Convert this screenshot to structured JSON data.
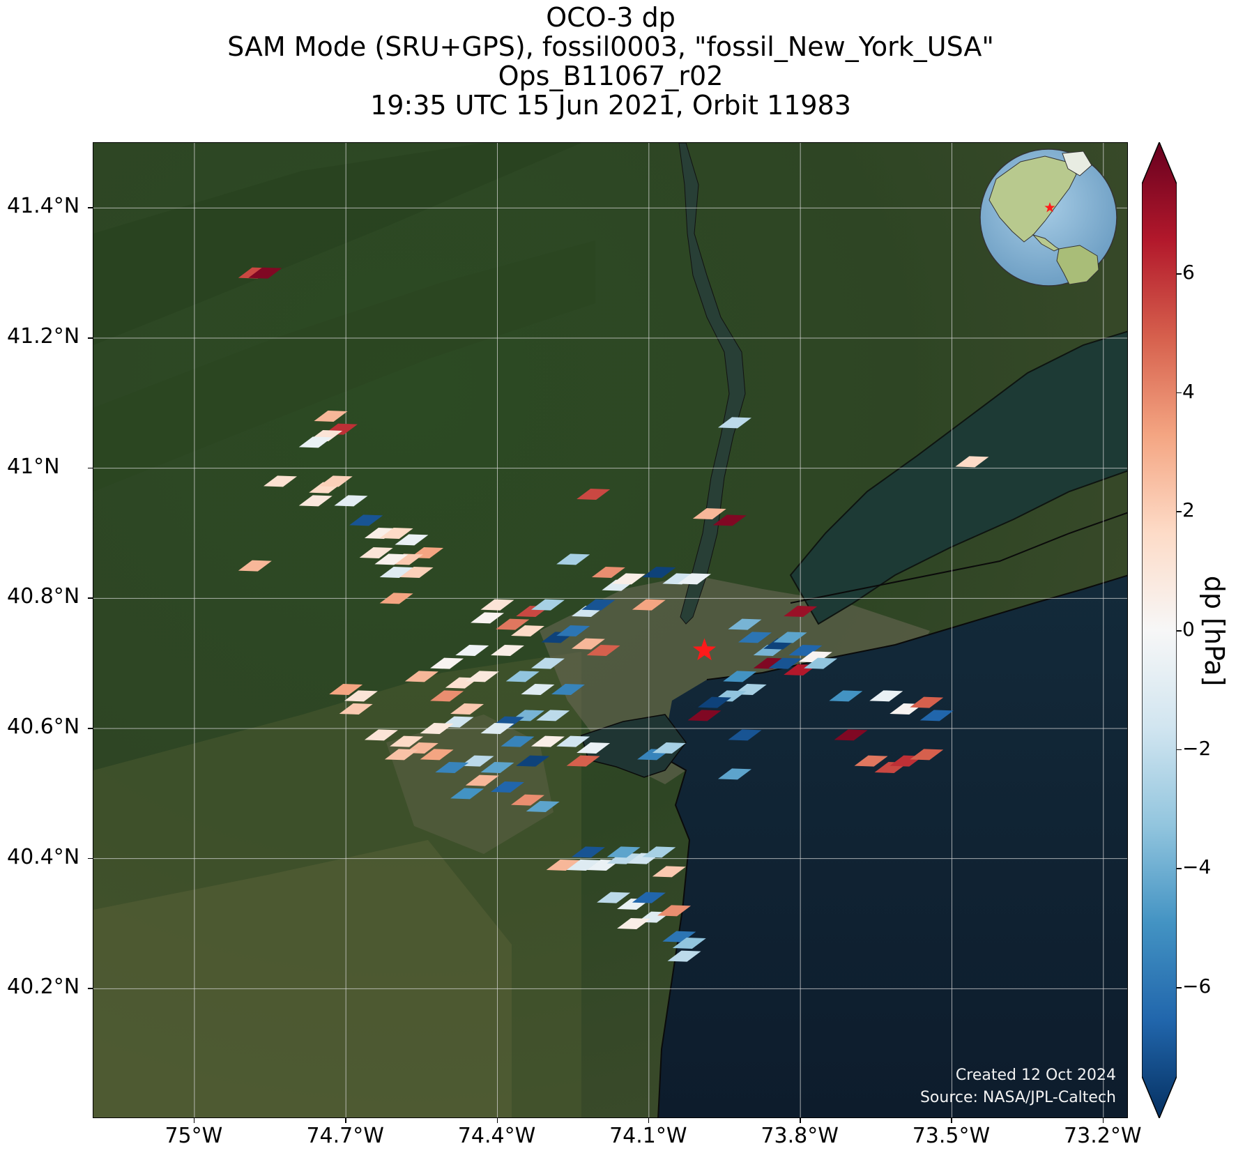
{
  "title": {
    "line1": "OCO-3 dp",
    "line2": "SAM Mode (SRU+GPS), fossil0003, \"fossil_New_York_USA\"",
    "line3": "Ops_B11067_r02",
    "line4": "19:35 UTC 15 Jun 2021, Orbit 11983"
  },
  "credits": {
    "created": "Created 12 Oct 2024",
    "source": "Source: NASA/JPL-Caltech"
  },
  "axes": {
    "lat_ticks": [
      {
        "value": 41.4,
        "label": "41.4°N"
      },
      {
        "value": 41.2,
        "label": "41.2°N"
      },
      {
        "value": 41.0,
        "label": "41°N"
      },
      {
        "value": 40.8,
        "label": "40.8°N"
      },
      {
        "value": 40.6,
        "label": "40.6°N"
      },
      {
        "value": 40.4,
        "label": "40.4°N"
      },
      {
        "value": 40.2,
        "label": "40.2°N"
      }
    ],
    "lon_ticks": [
      {
        "value": -75.0,
        "label": "75°W"
      },
      {
        "value": -74.7,
        "label": "74.7°W"
      },
      {
        "value": -74.4,
        "label": "74.4°W"
      },
      {
        "value": -74.1,
        "label": "74.1°W"
      },
      {
        "value": -73.8,
        "label": "73.8°W"
      },
      {
        "value": -73.5,
        "label": "73.5°W"
      },
      {
        "value": -73.2,
        "label": "73.2°W"
      }
    ],
    "lat_range": [
      40.0,
      41.5
    ],
    "lon_range": [
      -75.2,
      -73.15
    ],
    "grid": true
  },
  "colorbar": {
    "label": "dp [hPa]",
    "ticks": [
      {
        "value": 6,
        "label": "6"
      },
      {
        "value": 4,
        "label": "4"
      },
      {
        "value": 2,
        "label": "2"
      },
      {
        "value": 0,
        "label": "0"
      },
      {
        "value": -2,
        "label": "−2"
      },
      {
        "value": -4,
        "label": "−4"
      },
      {
        "value": -6,
        "label": "−6"
      }
    ],
    "range": [
      -7.5,
      7.5
    ],
    "extend": "both",
    "colormap": "RdBu_r"
  },
  "target": {
    "lon": -73.99,
    "lat": 40.72,
    "marker": "red-star"
  },
  "inset_globe": {
    "location": "top-right",
    "marker": "red-star"
  },
  "soundings": [
    {
      "lon": -74.88,
      "lat": 41.3,
      "dp": 5.0
    },
    {
      "lon": -74.86,
      "lat": 41.3,
      "dp": 7.0
    },
    {
      "lon": -74.73,
      "lat": 41.08,
      "dp": 2.5
    },
    {
      "lon": -74.71,
      "lat": 41.06,
      "dp": 5.5
    },
    {
      "lon": -74.74,
      "lat": 41.05,
      "dp": 1.0
    },
    {
      "lon": -74.76,
      "lat": 41.04,
      "dp": -0.5
    },
    {
      "lon": -74.83,
      "lat": 40.98,
      "dp": 1.2
    },
    {
      "lon": -74.74,
      "lat": 40.97,
      "dp": 1.5
    },
    {
      "lon": -74.72,
      "lat": 40.98,
      "dp": 1.8
    },
    {
      "lon": -74.69,
      "lat": 40.95,
      "dp": -0.8
    },
    {
      "lon": -74.76,
      "lat": 40.95,
      "dp": 0.8
    },
    {
      "lon": -74.88,
      "lat": 40.85,
      "dp": 2.5
    },
    {
      "lon": -74.66,
      "lat": 40.92,
      "dp": -6.5
    },
    {
      "lon": -74.63,
      "lat": 40.9,
      "dp": 0.5
    },
    {
      "lon": -74.6,
      "lat": 40.9,
      "dp": 1.5
    },
    {
      "lon": -74.57,
      "lat": 40.89,
      "dp": -0.5
    },
    {
      "lon": -74.54,
      "lat": 40.87,
      "dp": 3.0
    },
    {
      "lon": -74.58,
      "lat": 40.86,
      "dp": 2.0
    },
    {
      "lon": -74.61,
      "lat": 40.86,
      "dp": 0.3
    },
    {
      "lon": -74.64,
      "lat": 40.87,
      "dp": 1.0
    },
    {
      "lon": -74.6,
      "lat": 40.84,
      "dp": -1.0
    },
    {
      "lon": -74.56,
      "lat": 40.84,
      "dp": 1.8
    },
    {
      "lon": -74.6,
      "lat": 40.8,
      "dp": 3.0
    },
    {
      "lon": -74.4,
      "lat": 40.79,
      "dp": 1.0
    },
    {
      "lon": -74.42,
      "lat": 40.77,
      "dp": 0.2
    },
    {
      "lon": -74.37,
      "lat": 40.76,
      "dp": 4.0
    },
    {
      "lon": -74.33,
      "lat": 40.78,
      "dp": 5.0
    },
    {
      "lon": -74.3,
      "lat": 40.79,
      "dp": -2.5
    },
    {
      "lon": -74.34,
      "lat": 40.75,
      "dp": 1.5
    },
    {
      "lon": -74.38,
      "lat": 40.72,
      "dp": 0.5
    },
    {
      "lon": -74.45,
      "lat": 40.72,
      "dp": -0.3
    },
    {
      "lon": -74.5,
      "lat": 40.7,
      "dp": 0.2
    },
    {
      "lon": -74.55,
      "lat": 40.68,
      "dp": 2.5
    },
    {
      "lon": -74.47,
      "lat": 40.67,
      "dp": 1.2
    },
    {
      "lon": -74.43,
      "lat": 40.68,
      "dp": 0.8
    },
    {
      "lon": -74.5,
      "lat": 40.65,
      "dp": 3.5
    },
    {
      "lon": -74.46,
      "lat": 40.63,
      "dp": 2.0
    },
    {
      "lon": -74.48,
      "lat": 40.61,
      "dp": -1.5
    },
    {
      "lon": -74.28,
      "lat": 40.74,
      "dp": -7.0
    },
    {
      "lon": -74.25,
      "lat": 40.75,
      "dp": -5.5
    },
    {
      "lon": -74.22,
      "lat": 40.73,
      "dp": 2.5
    },
    {
      "lon": -74.19,
      "lat": 40.72,
      "dp": 4.5
    },
    {
      "lon": -74.3,
      "lat": 40.7,
      "dp": -2.0
    },
    {
      "lon": -74.35,
      "lat": 40.68,
      "dp": -3.0
    },
    {
      "lon": -74.32,
      "lat": 40.66,
      "dp": -1.0
    },
    {
      "lon": -74.26,
      "lat": 40.66,
      "dp": -5.0
    },
    {
      "lon": -74.29,
      "lat": 40.62,
      "dp": -2.0
    },
    {
      "lon": -74.34,
      "lat": 40.62,
      "dp": -3.5
    },
    {
      "lon": -74.38,
      "lat": 40.61,
      "dp": -6.5
    },
    {
      "lon": -74.4,
      "lat": 40.6,
      "dp": -1.0
    },
    {
      "lon": -74.36,
      "lat": 40.58,
      "dp": -5.0
    },
    {
      "lon": -74.3,
      "lat": 40.58,
      "dp": 0.5
    },
    {
      "lon": -74.25,
      "lat": 40.58,
      "dp": -1.5
    },
    {
      "lon": -74.21,
      "lat": 40.57,
      "dp": -0.5
    },
    {
      "lon": -74.23,
      "lat": 40.55,
      "dp": 4.5
    },
    {
      "lon": -74.33,
      "lat": 40.55,
      "dp": -7.0
    },
    {
      "lon": -74.4,
      "lat": 40.54,
      "dp": -4.0
    },
    {
      "lon": -74.44,
      "lat": 40.55,
      "dp": -2.0
    },
    {
      "lon": -74.49,
      "lat": 40.54,
      "dp": -5.0
    },
    {
      "lon": -74.43,
      "lat": 40.52,
      "dp": 2.5
    },
    {
      "lon": -74.38,
      "lat": 40.51,
      "dp": -6.0
    },
    {
      "lon": -74.34,
      "lat": 40.49,
      "dp": 3.5
    },
    {
      "lon": -74.31,
      "lat": 40.48,
      "dp": -4.0
    },
    {
      "lon": -74.46,
      "lat": 40.5,
      "dp": -4.5
    },
    {
      "lon": -74.7,
      "lat": 40.66,
      "dp": 3.0
    },
    {
      "lon": -74.67,
      "lat": 40.65,
      "dp": 1.0
    },
    {
      "lon": -74.68,
      "lat": 40.63,
      "dp": 2.0
    },
    {
      "lon": -74.63,
      "lat": 40.59,
      "dp": 1.0
    },
    {
      "lon": -74.58,
      "lat": 40.58,
      "dp": 1.5
    },
    {
      "lon": -74.55,
      "lat": 40.57,
      "dp": 2.5
    },
    {
      "lon": -74.52,
      "lat": 40.56,
      "dp": 3.0
    },
    {
      "lon": -74.59,
      "lat": 40.56,
      "dp": 2.2
    },
    {
      "lon": -74.52,
      "lat": 40.6,
      "dp": 0.8
    },
    {
      "lon": -74.21,
      "lat": 40.96,
      "dp": 5.0
    },
    {
      "lon": -74.25,
      "lat": 40.86,
      "dp": -2.5
    },
    {
      "lon": -74.18,
      "lat": 40.84,
      "dp": 3.5
    },
    {
      "lon": -74.16,
      "lat": 40.82,
      "dp": -1.0
    },
    {
      "lon": -74.14,
      "lat": 40.83,
      "dp": 0.5
    },
    {
      "lon": -74.22,
      "lat": 40.78,
      "dp": -1.5
    },
    {
      "lon": -74.2,
      "lat": 40.79,
      "dp": -6.5
    },
    {
      "lon": -74.1,
      "lat": 40.79,
      "dp": 3.0
    },
    {
      "lon": -74.08,
      "lat": 40.84,
      "dp": -7.0
    },
    {
      "lon": -74.04,
      "lat": 40.83,
      "dp": -1.5
    },
    {
      "lon": -74.01,
      "lat": 40.83,
      "dp": -0.5
    },
    {
      "lon": -73.98,
      "lat": 40.93,
      "dp": 2.5
    },
    {
      "lon": -73.94,
      "lat": 40.92,
      "dp": 7.0
    },
    {
      "lon": -73.93,
      "lat": 41.07,
      "dp": -2.0
    },
    {
      "lon": -74.09,
      "lat": 40.56,
      "dp": -5.0
    },
    {
      "lon": -74.06,
      "lat": 40.57,
      "dp": -2.5
    },
    {
      "lon": -73.91,
      "lat": 40.76,
      "dp": -3.5
    },
    {
      "lon": -73.89,
      "lat": 40.74,
      "dp": -5.5
    },
    {
      "lon": -73.86,
      "lat": 40.72,
      "dp": -3.5
    },
    {
      "lon": -73.84,
      "lat": 40.73,
      "dp": -7.0
    },
    {
      "lon": -73.82,
      "lat": 40.74,
      "dp": -4.0
    },
    {
      "lon": -73.86,
      "lat": 40.7,
      "dp": 7.0
    },
    {
      "lon": -73.83,
      "lat": 40.7,
      "dp": -6.5
    },
    {
      "lon": -73.8,
      "lat": 40.69,
      "dp": 6.0
    },
    {
      "lon": -73.79,
      "lat": 40.72,
      "dp": -6.0
    },
    {
      "lon": -73.77,
      "lat": 40.71,
      "dp": 0.2
    },
    {
      "lon": -73.76,
      "lat": 40.7,
      "dp": -3.0
    },
    {
      "lon": -73.8,
      "lat": 40.78,
      "dp": 6.5
    },
    {
      "lon": -73.92,
      "lat": 40.68,
      "dp": -4.5
    },
    {
      "lon": -73.9,
      "lat": 40.66,
      "dp": -2.5
    },
    {
      "lon": -73.94,
      "lat": 40.65,
      "dp": -3.0
    },
    {
      "lon": -73.97,
      "lat": 40.64,
      "dp": -7.0
    },
    {
      "lon": -73.99,
      "lat": 40.62,
      "dp": 7.0
    },
    {
      "lon": -73.91,
      "lat": 40.59,
      "dp": -6.5
    },
    {
      "lon": -73.93,
      "lat": 40.53,
      "dp": -4.0
    },
    {
      "lon": -73.71,
      "lat": 40.65,
      "dp": -4.5
    },
    {
      "lon": -73.7,
      "lat": 40.59,
      "dp": 7.0
    },
    {
      "lon": -73.63,
      "lat": 40.65,
      "dp": -0.5
    },
    {
      "lon": -73.59,
      "lat": 40.63,
      "dp": 0.2
    },
    {
      "lon": -73.55,
      "lat": 40.64,
      "dp": 4.5
    },
    {
      "lon": -73.53,
      "lat": 40.62,
      "dp": -6.0
    },
    {
      "lon": -73.66,
      "lat": 40.55,
      "dp": 4.0
    },
    {
      "lon": -73.62,
      "lat": 40.54,
      "dp": 5.0
    },
    {
      "lon": -73.59,
      "lat": 40.55,
      "dp": 5.5
    },
    {
      "lon": -73.55,
      "lat": 40.56,
      "dp": 4.5
    },
    {
      "lon": -73.46,
      "lat": 41.01,
      "dp": 1.5
    },
    {
      "lon": -74.27,
      "lat": 40.39,
      "dp": 2.5
    },
    {
      "lon": -74.23,
      "lat": 40.39,
      "dp": -1.0
    },
    {
      "lon": -74.19,
      "lat": 40.39,
      "dp": -0.5
    },
    {
      "lon": -74.15,
      "lat": 40.4,
      "dp": -2.0
    },
    {
      "lon": -74.11,
      "lat": 40.4,
      "dp": -1.5
    },
    {
      "lon": -74.06,
      "lat": 40.38,
      "dp": 2.0
    },
    {
      "lon": -74.22,
      "lat": 40.41,
      "dp": -6.5
    },
    {
      "lon": -74.15,
      "lat": 40.41,
      "dp": -4.0
    },
    {
      "lon": -74.08,
      "lat": 40.41,
      "dp": -2.5
    },
    {
      "lon": -74.17,
      "lat": 40.34,
      "dp": -2.0
    },
    {
      "lon": -74.13,
      "lat": 40.33,
      "dp": -0.5
    },
    {
      "lon": -74.1,
      "lat": 40.34,
      "dp": -6.0
    },
    {
      "lon": -74.09,
      "lat": 40.31,
      "dp": -1.0
    },
    {
      "lon": -74.05,
      "lat": 40.32,
      "dp": 3.5
    },
    {
      "lon": -74.13,
      "lat": 40.3,
      "dp": 0.5
    },
    {
      "lon": -74.04,
      "lat": 40.28,
      "dp": -5.5
    },
    {
      "lon": -74.02,
      "lat": 40.27,
      "dp": -3.0
    },
    {
      "lon": -74.03,
      "lat": 40.25,
      "dp": -2.0
    }
  ]
}
